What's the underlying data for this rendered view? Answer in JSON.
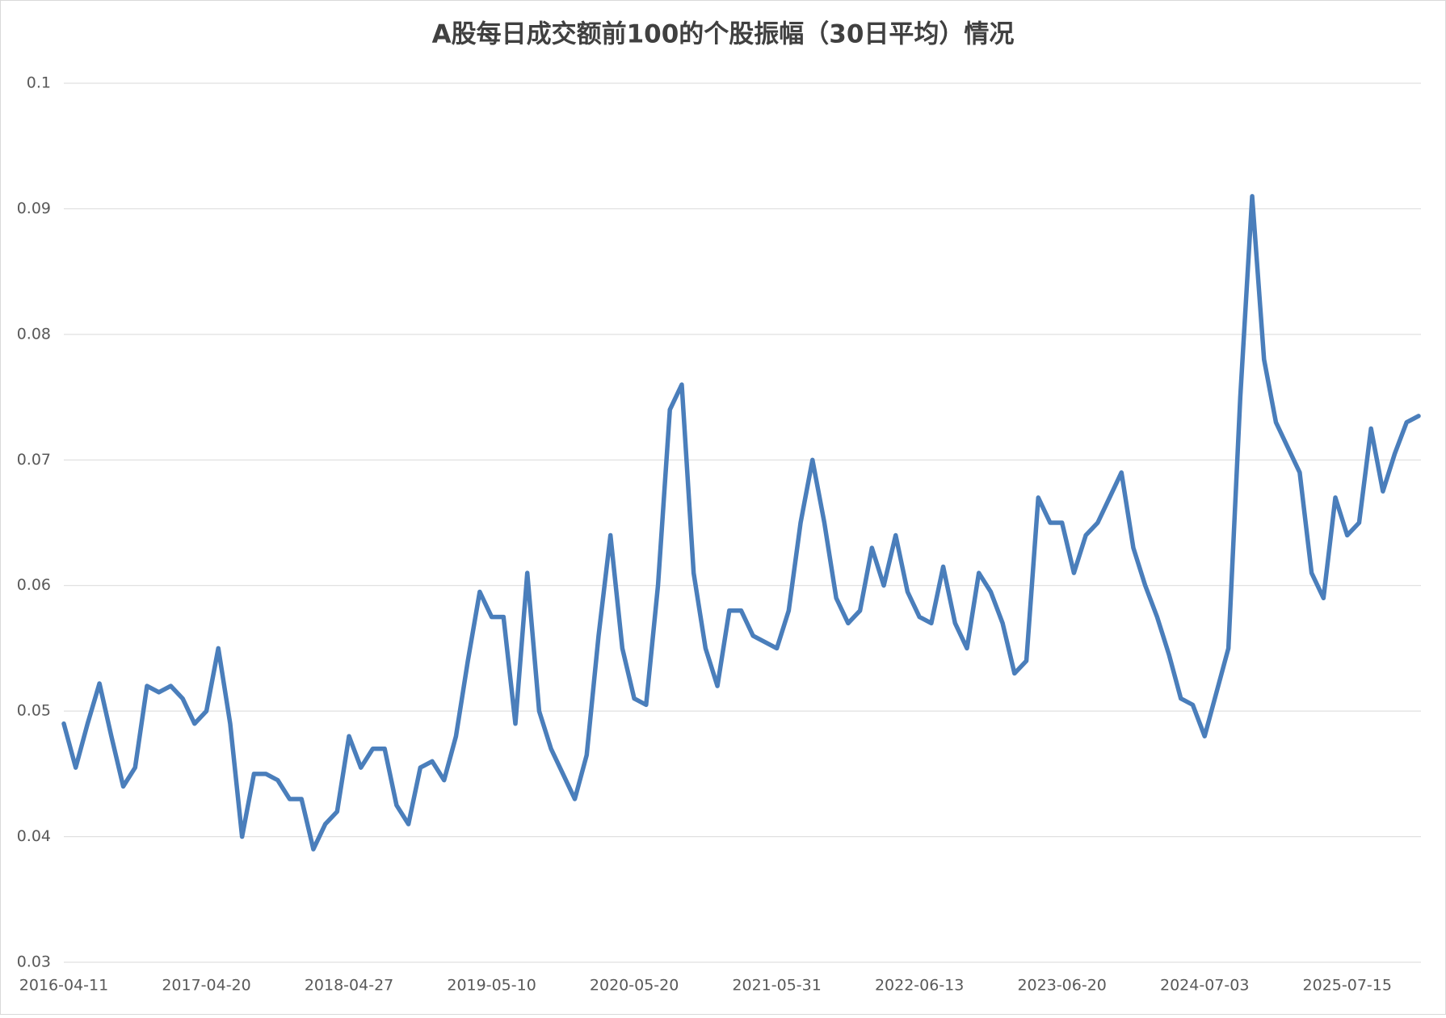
{
  "chart_data": {
    "type": "line",
    "title": "A股每日成交额前100的个股振幅（30日平均）情况",
    "categories": [
      "2016-04-11",
      null,
      null,
      null,
      null,
      null,
      null,
      null,
      null,
      null,
      null,
      null,
      "2017-04-20",
      null,
      null,
      null,
      null,
      null,
      null,
      null,
      null,
      null,
      null,
      null,
      "2018-04-27",
      null,
      null,
      null,
      null,
      null,
      null,
      null,
      null,
      null,
      null,
      null,
      "2019-05-10",
      null,
      null,
      null,
      null,
      null,
      null,
      null,
      null,
      null,
      null,
      null,
      "2020-05-20",
      null,
      null,
      null,
      null,
      null,
      null,
      null,
      null,
      null,
      null,
      null,
      "2021-05-31",
      null,
      null,
      null,
      null,
      null,
      null,
      null,
      null,
      null,
      null,
      null,
      "2022-06-13",
      null,
      null,
      null,
      null,
      null,
      null,
      null,
      null,
      null,
      null,
      null,
      "2023-06-20",
      null,
      null,
      null,
      null,
      null,
      null,
      null,
      null,
      null,
      null,
      null,
      "2024-07-03",
      null,
      null,
      null,
      null,
      null,
      null,
      null,
      null,
      null,
      null,
      null,
      "2025-07-15",
      null,
      null,
      null,
      null,
      null,
      null
    ],
    "series": [
      {
        "name": "振幅",
        "color": "#4a7ebb",
        "values": [
          0.049,
          0.0455,
          0.049,
          0.0522,
          0.048,
          0.044,
          0.0455,
          0.052,
          0.0515,
          0.052,
          0.051,
          0.049,
          0.05,
          0.055,
          0.049,
          0.04,
          0.045,
          0.045,
          0.0445,
          0.043,
          0.043,
          0.039,
          0.041,
          0.042,
          0.048,
          0.0455,
          0.047,
          0.047,
          0.0425,
          0.041,
          0.0455,
          0.046,
          0.0445,
          0.048,
          0.054,
          0.0595,
          0.0575,
          0.0575,
          0.049,
          0.061,
          0.05,
          0.047,
          0.045,
          0.043,
          0.0465,
          0.056,
          0.064,
          0.055,
          0.051,
          0.0505,
          0.06,
          0.074,
          0.076,
          0.061,
          0.055,
          0.052,
          0.058,
          0.058,
          0.056,
          0.0555,
          0.055,
          0.058,
          0.065,
          0.07,
          0.065,
          0.059,
          0.057,
          0.058,
          0.063,
          0.06,
          0.064,
          0.0595,
          0.0575,
          0.057,
          0.0615,
          0.057,
          0.055,
          0.061,
          0.0595,
          0.057,
          0.053,
          0.054,
          0.067,
          0.065,
          0.065,
          0.061,
          0.064,
          0.065,
          0.067,
          0.069,
          0.063,
          0.06,
          0.0575,
          0.0545,
          0.051,
          0.0505,
          0.048,
          0.0515,
          0.055,
          0.075,
          0.091,
          0.078,
          0.073,
          0.071,
          0.069,
          0.061,
          0.059,
          0.067,
          0.064,
          0.065,
          0.0725,
          0.0675,
          0.0705,
          0.073,
          0.0735
        ]
      }
    ],
    "ylim": [
      0.03,
      0.1
    ],
    "yticks": [
      0.03,
      0.04,
      0.05,
      0.06,
      0.07,
      0.08,
      0.09,
      0.1
    ],
    "grid": true
  }
}
